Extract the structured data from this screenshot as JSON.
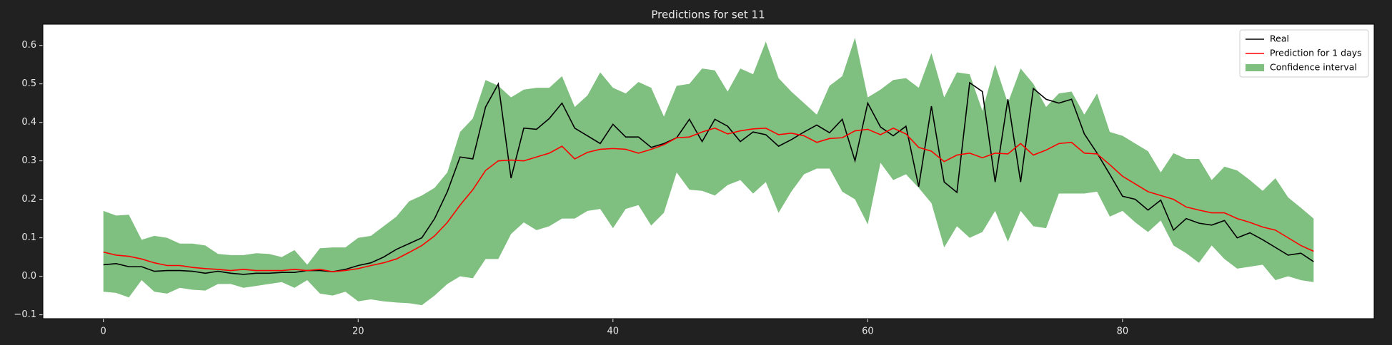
{
  "chart_data": {
    "type": "line",
    "title": "Predictions for set 11",
    "x": [
      0,
      1,
      2,
      3,
      4,
      5,
      6,
      7,
      8,
      9,
      10,
      11,
      12,
      13,
      14,
      15,
      16,
      17,
      18,
      19,
      20,
      21,
      22,
      23,
      24,
      25,
      26,
      27,
      28,
      29,
      30,
      31,
      32,
      33,
      34,
      35,
      36,
      37,
      38,
      39,
      40,
      41,
      42,
      43,
      44,
      45,
      46,
      47,
      48,
      49,
      50,
      51,
      52,
      53,
      54,
      55,
      56,
      57,
      58,
      59,
      60,
      61,
      62,
      63,
      64,
      65,
      66,
      67,
      68,
      69,
      70,
      71,
      72,
      73,
      74,
      75,
      76,
      77,
      78,
      79,
      80,
      81,
      82,
      83,
      84,
      85,
      86,
      87,
      88,
      89,
      90,
      91,
      92,
      93,
      94,
      95
    ],
    "series": [
      {
        "name": "Real",
        "color": "#000000",
        "values": [
          0.03,
          0.033,
          0.025,
          0.025,
          0.013,
          0.015,
          0.015,
          0.013,
          0.008,
          0.013,
          0.008,
          0.005,
          0.008,
          0.008,
          0.01,
          0.01,
          0.015,
          0.015,
          0.012,
          0.018,
          0.028,
          0.035,
          0.05,
          0.07,
          0.085,
          0.1,
          0.15,
          0.22,
          0.31,
          0.305,
          0.44,
          0.5,
          0.255,
          0.385,
          0.382,
          0.41,
          0.45,
          0.385,
          0.365,
          0.345,
          0.395,
          0.362,
          0.362,
          0.335,
          0.345,
          0.36,
          0.408,
          0.35,
          0.408,
          0.39,
          0.35,
          0.375,
          0.368,
          0.338,
          0.355,
          0.375,
          0.393,
          0.373,
          0.408,
          0.3,
          0.45,
          0.388,
          0.365,
          0.39,
          0.233,
          0.442,
          0.245,
          0.218,
          0.503,
          0.48,
          0.245,
          0.46,
          0.245,
          0.488,
          0.46,
          0.45,
          0.46,
          0.37,
          0.32,
          0.265,
          0.208,
          0.2,
          0.172,
          0.198,
          0.12,
          0.15,
          0.138,
          0.133,
          0.145,
          0.1,
          0.113,
          0.095,
          0.075,
          0.055,
          0.06,
          0.038
        ]
      },
      {
        "name": "Prediction for 1 days",
        "color": "#ff0000",
        "values": [
          0.063,
          0.055,
          0.052,
          0.045,
          0.035,
          0.028,
          0.028,
          0.023,
          0.02,
          0.018,
          0.015,
          0.018,
          0.015,
          0.015,
          0.015,
          0.018,
          0.015,
          0.018,
          0.012,
          0.015,
          0.02,
          0.028,
          0.035,
          0.045,
          0.062,
          0.08,
          0.105,
          0.14,
          0.185,
          0.225,
          0.275,
          0.3,
          0.302,
          0.3,
          0.31,
          0.32,
          0.338,
          0.305,
          0.322,
          0.33,
          0.332,
          0.33,
          0.32,
          0.33,
          0.342,
          0.36,
          0.362,
          0.375,
          0.385,
          0.37,
          0.378,
          0.383,
          0.385,
          0.368,
          0.372,
          0.365,
          0.348,
          0.358,
          0.36,
          0.378,
          0.382,
          0.368,
          0.385,
          0.37,
          0.335,
          0.325,
          0.298,
          0.315,
          0.32,
          0.308,
          0.32,
          0.318,
          0.345,
          0.315,
          0.328,
          0.345,
          0.348,
          0.32,
          0.318,
          0.29,
          0.26,
          0.24,
          0.22,
          0.21,
          0.2,
          0.18,
          0.172,
          0.165,
          0.165,
          0.15,
          0.14,
          0.128,
          0.12,
          0.1,
          0.08,
          0.065
        ]
      },
      {
        "name": "Confidence interval",
        "color": "#7fbf7f",
        "lower": [
          -0.04,
          -0.043,
          -0.055,
          -0.01,
          -0.04,
          -0.045,
          -0.03,
          -0.035,
          -0.037,
          -0.02,
          -0.02,
          -0.03,
          -0.025,
          -0.02,
          -0.015,
          -0.03,
          -0.01,
          -0.045,
          -0.05,
          -0.04,
          -0.065,
          -0.06,
          -0.065,
          -0.068,
          -0.07,
          -0.075,
          -0.05,
          -0.02,
          0.0,
          -0.005,
          0.045,
          0.045,
          0.11,
          0.14,
          0.12,
          0.13,
          0.15,
          0.15,
          0.17,
          0.175,
          0.125,
          0.175,
          0.185,
          0.132,
          0.165,
          0.27,
          0.225,
          0.222,
          0.21,
          0.237,
          0.25,
          0.215,
          0.245,
          0.165,
          0.22,
          0.265,
          0.28,
          0.28,
          0.22,
          0.2,
          0.135,
          0.295,
          0.25,
          0.265,
          0.23,
          0.19,
          0.075,
          0.13,
          0.1,
          0.115,
          0.17,
          0.09,
          0.17,
          0.13,
          0.125,
          0.215,
          0.215,
          0.215,
          0.22,
          0.155,
          0.17,
          0.14,
          0.115,
          0.145,
          0.08,
          0.06,
          0.035,
          0.08,
          0.045,
          0.02,
          0.025,
          0.03,
          -0.01,
          0.0,
          -0.01,
          -0.015
        ],
        "upper": [
          0.17,
          0.158,
          0.16,
          0.095,
          0.105,
          0.1,
          0.085,
          0.085,
          0.08,
          0.058,
          0.055,
          0.055,
          0.06,
          0.058,
          0.05,
          0.068,
          0.03,
          0.073,
          0.075,
          0.075,
          0.1,
          0.105,
          0.13,
          0.155,
          0.195,
          0.21,
          0.23,
          0.27,
          0.375,
          0.41,
          0.51,
          0.495,
          0.465,
          0.485,
          0.49,
          0.49,
          0.52,
          0.44,
          0.47,
          0.53,
          0.49,
          0.475,
          0.505,
          0.49,
          0.415,
          0.495,
          0.5,
          0.54,
          0.535,
          0.48,
          0.54,
          0.525,
          0.61,
          0.515,
          0.48,
          0.45,
          0.42,
          0.495,
          0.52,
          0.62,
          0.465,
          0.485,
          0.51,
          0.515,
          0.49,
          0.58,
          0.465,
          0.53,
          0.525,
          0.43,
          0.55,
          0.45,
          0.54,
          0.5,
          0.44,
          0.475,
          0.48,
          0.42,
          0.475,
          0.375,
          0.365,
          0.345,
          0.325,
          0.27,
          0.32,
          0.305,
          0.305,
          0.25,
          0.285,
          0.275,
          0.25,
          0.222,
          0.255,
          0.205,
          0.178,
          0.15
        ]
      }
    ],
    "xlim": [
      -4.75,
      99.75
    ],
    "xticks": [
      0,
      20,
      40,
      60,
      80
    ],
    "ylim": [
      -0.11,
      0.655
    ],
    "yticks": [
      {
        "value": -0.1,
        "label": "−0.1"
      },
      {
        "value": 0,
        "label": "0.0"
      },
      0.1,
      0.2,
      0.3,
      0.4,
      0.5,
      0.6
    ],
    "legend": "upper right"
  }
}
